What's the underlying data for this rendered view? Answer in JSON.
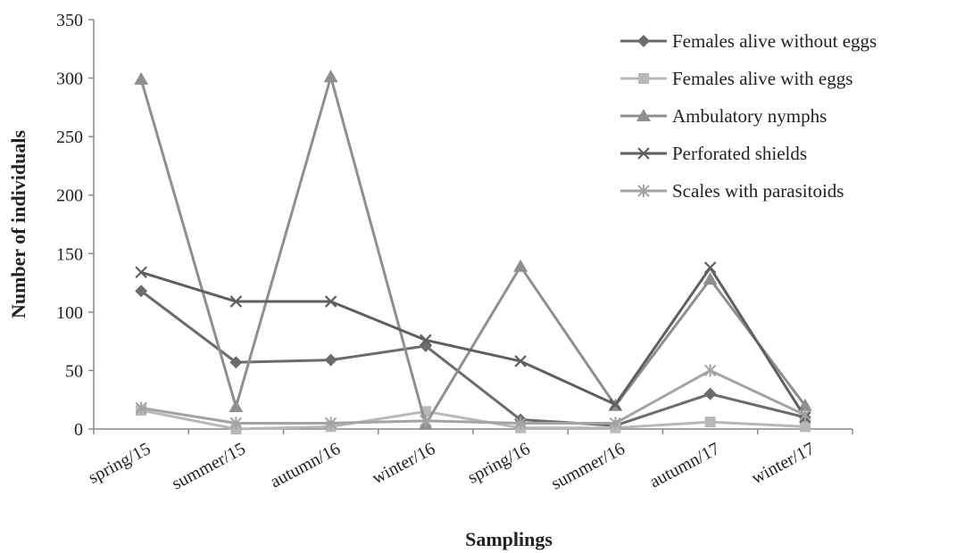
{
  "chart_data": {
    "type": "line",
    "xlabel": "Samplings",
    "ylabel": "Number of individuals",
    "ylim": [
      0,
      350
    ],
    "yticks": [
      0,
      50,
      100,
      150,
      200,
      250,
      300,
      350
    ],
    "categories": [
      "spring/15",
      "summer/15",
      "autumn/16",
      "winter/16",
      "spring/16",
      "summer/16",
      "autumn/17",
      "winter/17"
    ],
    "grid": false,
    "legend_position": "top-right",
    "series": [
      {
        "name": "Females alive without eggs",
        "marker": "diamond",
        "color": "#6b6b6b",
        "values": [
          118,
          57,
          59,
          71,
          8,
          3,
          30,
          10
        ]
      },
      {
        "name": "Females alive with eggs",
        "marker": "square",
        "color": "#b8b8b8",
        "values": [
          16,
          0,
          2,
          15,
          1,
          1,
          6,
          2
        ]
      },
      {
        "name": " Ambulatory nymphs",
        "marker": "triangle",
        "color": "#8f8f8f",
        "values": [
          299,
          19,
          301,
          4,
          139,
          20,
          128,
          20
        ]
      },
      {
        "name": "Perforated shields",
        "marker": "x",
        "color": "#5f5f5f",
        "values": [
          134,
          109,
          109,
          76,
          58,
          21,
          138,
          10
        ]
      },
      {
        "name": "Scales with parasitoids",
        "marker": "star",
        "color": "#a3a3a3",
        "values": [
          18,
          5,
          5,
          7,
          5,
          5,
          50,
          12
        ]
      }
    ]
  }
}
